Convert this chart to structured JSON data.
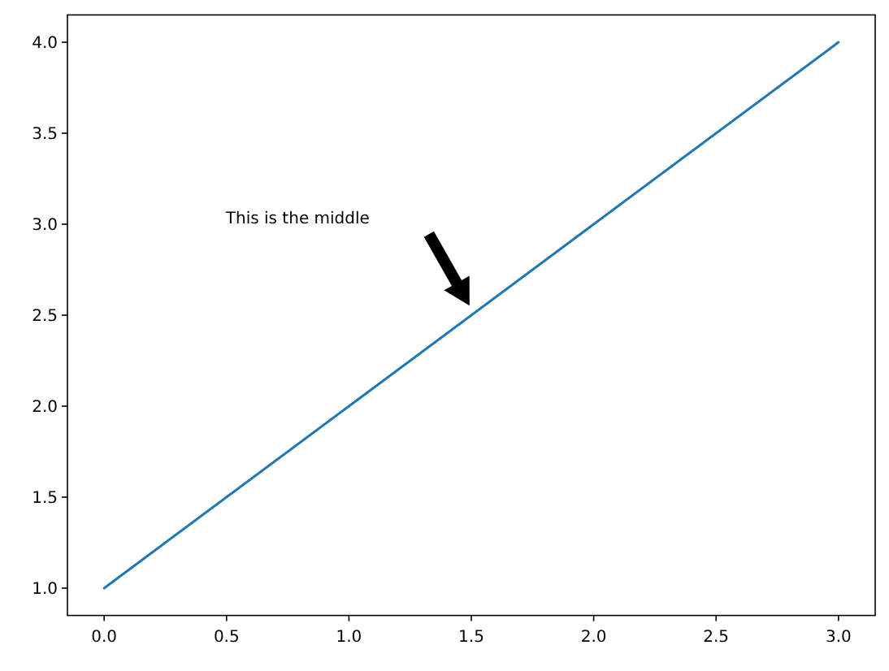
{
  "chart_data": {
    "type": "line",
    "x": [
      0,
      1,
      2,
      3
    ],
    "series": [
      {
        "color": "#1f77b4",
        "values": [
          1,
          2,
          3,
          4
        ]
      }
    ],
    "xlim": [
      -0.15,
      3.15
    ],
    "xticks": [
      {
        "value": 0,
        "label": "0.0"
      },
      {
        "value": 0.5,
        "label": "0.5"
      },
      {
        "value": 1,
        "label": "1.0"
      },
      {
        "value": 1.5,
        "label": "1.5"
      },
      {
        "value": 2,
        "label": "2.0"
      },
      {
        "value": 2.5,
        "label": "2.5"
      },
      {
        "value": 3,
        "label": "3.0"
      }
    ],
    "ylim": [
      0.85,
      4.15
    ],
    "yticks": [
      {
        "value": 1,
        "label": "1.0"
      },
      {
        "value": 1.5,
        "label": "1.5"
      },
      {
        "value": 2,
        "label": "2.0"
      },
      {
        "value": 2.5,
        "label": "2.5"
      },
      {
        "value": 3,
        "label": "3.0"
      },
      {
        "value": 3.5,
        "label": "3.5"
      },
      {
        "value": 4,
        "label": "4.0"
      }
    ],
    "grid": false,
    "marker": "none",
    "line_style": "solid",
    "annotations": [
      "This is the middle"
    ]
  }
}
